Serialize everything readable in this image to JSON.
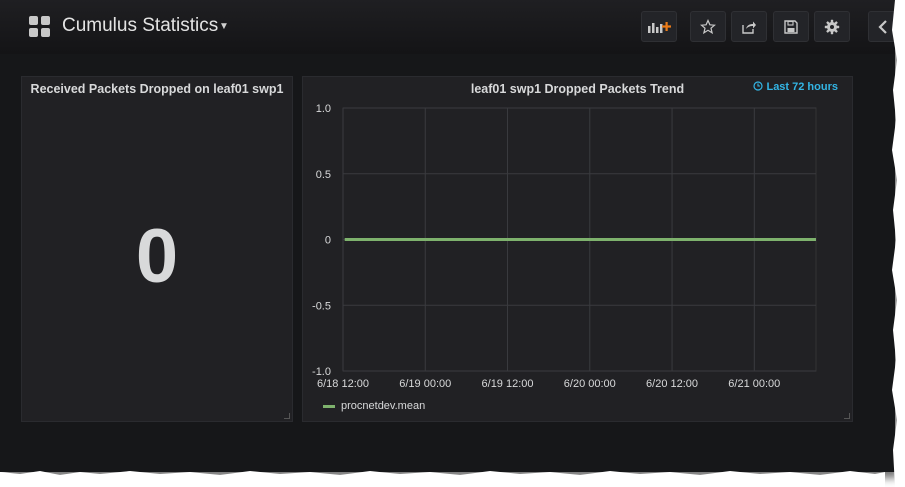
{
  "header": {
    "title": "Cumulus Statistics",
    "buttons": [
      {
        "name": "add-panel-button",
        "icon": "add-panel-icon"
      },
      {
        "name": "star-button",
        "icon": "star-icon"
      },
      {
        "name": "share-button",
        "icon": "share-icon"
      },
      {
        "name": "save-button",
        "icon": "save-icon"
      },
      {
        "name": "settings-button",
        "icon": "gear-icon"
      },
      {
        "name": "back-button",
        "icon": "chevron-left-icon"
      }
    ]
  },
  "stat_panel": {
    "title": "Received Packets Dropped on leaf01 swp1",
    "value": "0"
  },
  "graph_panel": {
    "title": "leaf01 swp1 Dropped Packets Trend",
    "time_range": "Last 72 hours",
    "time_range_icon": "clock-icon"
  },
  "chart_data": {
    "type": "line",
    "title": "leaf01 swp1 Dropped Packets Trend",
    "x_tick_labels": [
      "6/18 12:00",
      "6/19 00:00",
      "6/19 12:00",
      "6/20 00:00",
      "6/20 12:00",
      "6/21 00:00"
    ],
    "y_tick_labels": [
      "1.0",
      "0.5",
      "0",
      "-0.5",
      "-1.0"
    ],
    "ylim": [
      -1.0,
      1.0
    ],
    "xlim": [
      "6/18 12:00",
      "6/21 09:00"
    ],
    "grid": true,
    "legend_position": "bottom-left",
    "series": [
      {
        "name": "procnetdev.mean",
        "color": "#7eb26d",
        "x": [
          "6/18 12:15",
          "6/21 09:00"
        ],
        "y": [
          0,
          0
        ]
      }
    ]
  }
}
